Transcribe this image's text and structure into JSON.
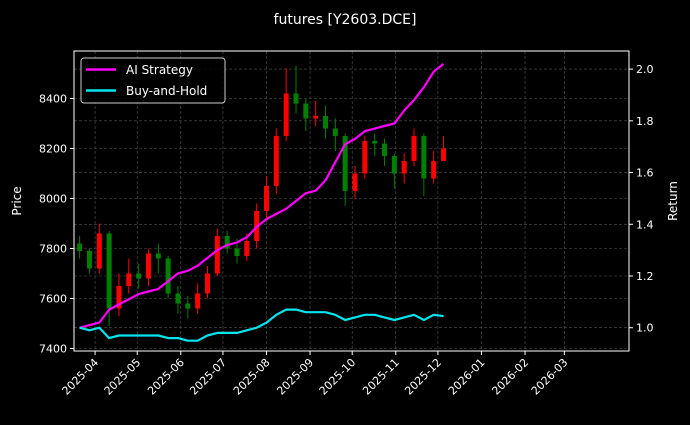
{
  "chart_data": {
    "type": "candlestick+line",
    "title": "futures [Y2603.DCE]",
    "xlabel": "",
    "ylabel_left": "Price",
    "ylabel_right": "Return",
    "xlim": [
      "2025-03-17",
      "2026-04-16"
    ],
    "ylim_left": [
      7390,
      8590
    ],
    "ylim_right": [
      0.91,
      2.07
    ],
    "x_ticks": [
      "2025-04",
      "2025-05",
      "2025-06",
      "2025-07",
      "2025-08",
      "2025-09",
      "2025-10",
      "2025-11",
      "2025-12",
      "2026-01",
      "2026-02",
      "2026-03"
    ],
    "y_ticks_left": [
      7400,
      7600,
      7800,
      8000,
      8200,
      8400
    ],
    "y_ticks_right": [
      1.0,
      1.2,
      1.4,
      1.6,
      1.8,
      2.0
    ],
    "grid": true,
    "legend_placement": "top-left",
    "colors": {
      "background": "#000000",
      "up": "#ff0000",
      "down": "#008000",
      "ai_strategy": "#ff00ff",
      "buy_and_hold": "#00e5ee"
    },
    "dates": [
      "2025-03-21",
      "2025-03-28",
      "2025-04-04",
      "2025-04-11",
      "2025-04-18",
      "2025-04-25",
      "2025-05-02",
      "2025-05-09",
      "2025-05-16",
      "2025-05-23",
      "2025-05-30",
      "2025-06-06",
      "2025-06-13",
      "2025-06-20",
      "2025-06-27",
      "2025-07-04",
      "2025-07-11",
      "2025-07-18",
      "2025-07-25",
      "2025-08-01",
      "2025-08-08",
      "2025-08-15",
      "2025-08-22",
      "2025-08-29",
      "2025-09-05",
      "2025-09-12",
      "2025-09-19",
      "2025-09-26",
      "2025-10-03",
      "2025-10-10",
      "2025-10-17",
      "2025-10-24",
      "2025-10-31",
      "2025-11-07",
      "2025-11-14",
      "2025-11-21",
      "2025-11-28",
      "2025-12-05"
    ],
    "ohlc": [
      [
        7820,
        7850,
        7760,
        7790
      ],
      [
        7790,
        7800,
        7700,
        7720
      ],
      [
        7720,
        7900,
        7700,
        7860
      ],
      [
        7860,
        7870,
        7490,
        7560
      ],
      [
        7560,
        7700,
        7530,
        7650
      ],
      [
        7650,
        7760,
        7620,
        7700
      ],
      [
        7700,
        7740,
        7640,
        7680
      ],
      [
        7680,
        7800,
        7650,
        7780
      ],
      [
        7780,
        7820,
        7700,
        7760
      ],
      [
        7760,
        7770,
        7600,
        7620
      ],
      [
        7620,
        7650,
        7540,
        7580
      ],
      [
        7580,
        7610,
        7520,
        7560
      ],
      [
        7560,
        7660,
        7540,
        7620
      ],
      [
        7620,
        7730,
        7600,
        7700
      ],
      [
        7700,
        7880,
        7690,
        7850
      ],
      [
        7850,
        7870,
        7780,
        7800
      ],
      [
        7800,
        7840,
        7740,
        7770
      ],
      [
        7770,
        7860,
        7750,
        7830
      ],
      [
        7830,
        7980,
        7800,
        7950
      ],
      [
        7950,
        8090,
        7920,
        8050
      ],
      [
        8050,
        8280,
        8020,
        8250
      ],
      [
        8250,
        8520,
        8230,
        8420
      ],
      [
        8420,
        8530,
        8340,
        8380
      ],
      [
        8380,
        8400,
        8270,
        8320
      ],
      [
        8320,
        8390,
        8290,
        8330
      ],
      [
        8330,
        8370,
        8240,
        8280
      ],
      [
        8280,
        8320,
        8190,
        8250
      ],
      [
        8250,
        8260,
        7970,
        8030
      ],
      [
        8030,
        8130,
        8000,
        8100
      ],
      [
        8100,
        8250,
        8080,
        8230
      ],
      [
        8230,
        8260,
        8170,
        8220
      ],
      [
        8220,
        8240,
        8130,
        8170
      ],
      [
        8170,
        8180,
        8040,
        8100
      ],
      [
        8100,
        8180,
        8060,
        8150
      ],
      [
        8150,
        8280,
        8130,
        8250
      ],
      [
        8250,
        8260,
        8010,
        8080
      ],
      [
        8080,
        8190,
        8060,
        8150
      ],
      [
        8150,
        8250,
        8150,
        8200
      ]
    ],
    "series": [
      {
        "name": "AI Strategy",
        "values": [
          1.0,
          1.01,
          1.02,
          1.07,
          1.09,
          1.11,
          1.13,
          1.14,
          1.15,
          1.18,
          1.21,
          1.22,
          1.24,
          1.27,
          1.3,
          1.32,
          1.33,
          1.35,
          1.39,
          1.42,
          1.44,
          1.46,
          1.49,
          1.52,
          1.53,
          1.57,
          1.64,
          1.71,
          1.73,
          1.76,
          1.77,
          1.78,
          1.79,
          1.84,
          1.88,
          1.93,
          1.99,
          2.02
        ]
      },
      {
        "name": "Buy-and-Hold",
        "values": [
          1.0,
          0.99,
          1.0,
          0.96,
          0.97,
          0.97,
          0.97,
          0.97,
          0.97,
          0.96,
          0.96,
          0.95,
          0.95,
          0.97,
          0.98,
          0.98,
          0.98,
          0.99,
          1.0,
          1.02,
          1.05,
          1.07,
          1.07,
          1.06,
          1.06,
          1.06,
          1.05,
          1.03,
          1.04,
          1.05,
          1.05,
          1.04,
          1.03,
          1.04,
          1.05,
          1.03,
          1.05,
          1.045
        ]
      }
    ]
  }
}
